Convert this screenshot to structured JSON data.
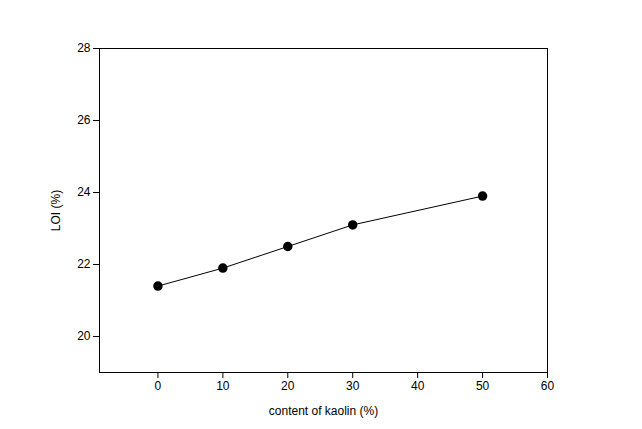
{
  "chart_data": {
    "type": "line",
    "x_label": "content of kaolin (%)",
    "y_label": "LOI (%)",
    "x": [
      0,
      10,
      20,
      30,
      50
    ],
    "series": [
      {
        "name": "LOI",
        "color": "#000000",
        "marker": "circle",
        "line_style": "solid",
        "values": [
          21.4,
          21.9,
          22.5,
          23.1,
          23.9
        ]
      }
    ],
    "xlim": [
      -9,
      60
    ],
    "xticks": [
      0,
      10,
      20,
      30,
      40,
      50,
      60
    ],
    "ylim": [
      19,
      28
    ],
    "yticks": [
      20,
      22,
      24,
      26,
      28
    ],
    "grid": false
  }
}
